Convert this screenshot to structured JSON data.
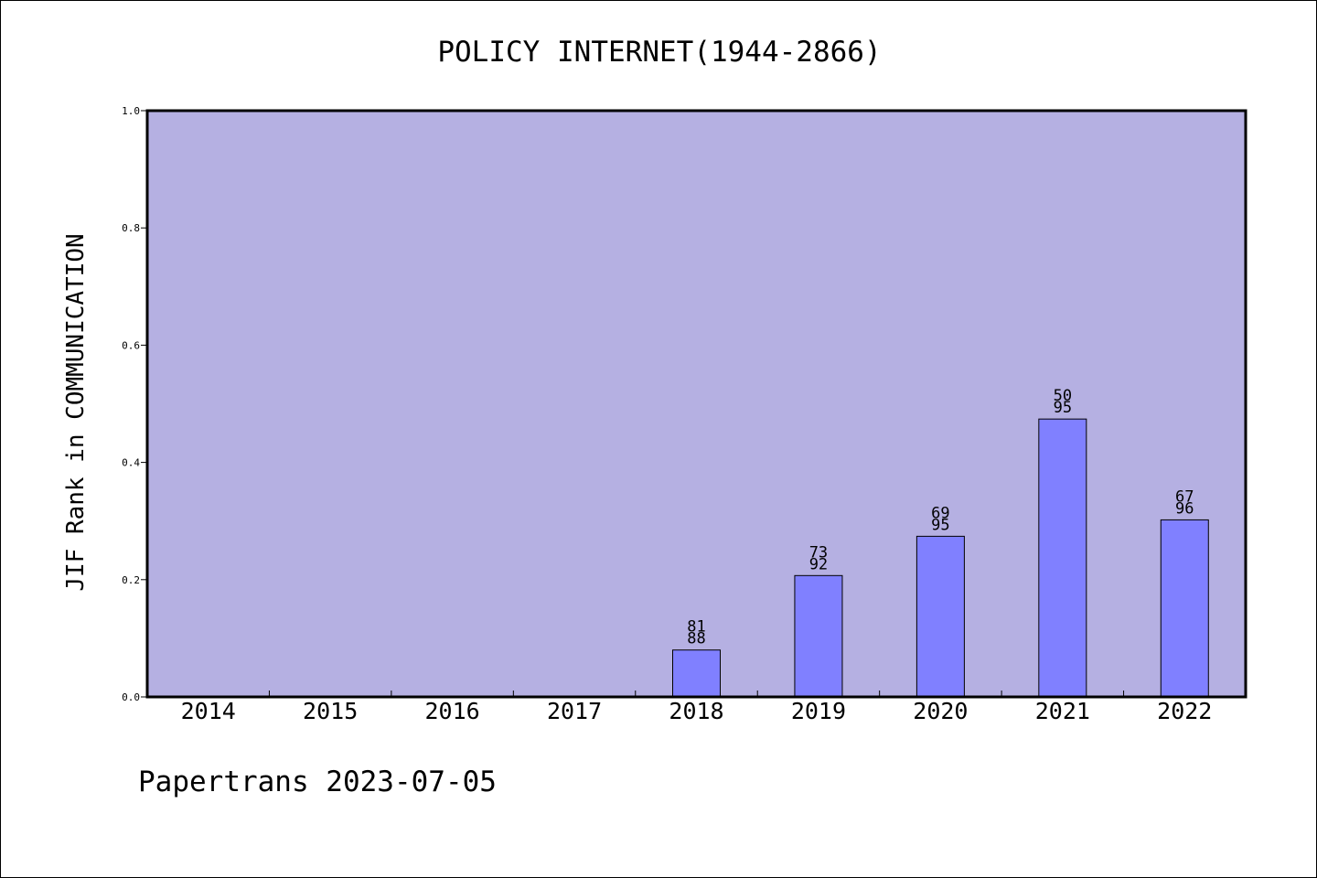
{
  "chart_data": {
    "type": "bar",
    "title": "POLICY INTERNET(1944-2866)",
    "xlabel": "",
    "ylabel": "JIF Rank in COMMUNICATION",
    "categories": [
      "2014",
      "2015",
      "2016",
      "2017",
      "2018",
      "2019",
      "2020",
      "2021",
      "2022"
    ],
    "values": [
      null,
      null,
      null,
      null,
      0.08,
      0.207,
      0.274,
      0.474,
      0.302
    ],
    "ranks": [
      "",
      "",
      "",
      "",
      "81",
      "73",
      "69",
      "50",
      "67"
    ],
    "totals": [
      "",
      "",
      "",
      "",
      "88",
      "92",
      "95",
      "95",
      "96"
    ],
    "ylim": [
      0.0,
      1.0
    ],
    "yticks": [
      "0.0",
      "0.2",
      "0.4",
      "0.6",
      "0.8",
      "1.0"
    ],
    "grid": false,
    "footer": "Papertrans 2023-07-05",
    "colors": {
      "plot_background": "#b5b0e2",
      "bar_fill": "#8080ff",
      "bar_edge": "#000000",
      "axis": "#000000"
    }
  }
}
